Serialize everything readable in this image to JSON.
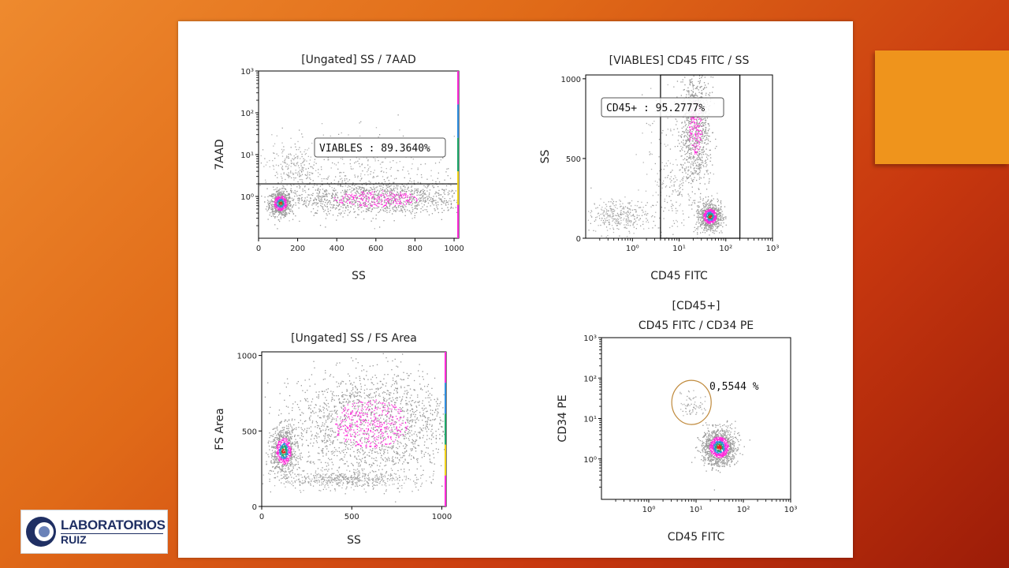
{
  "chart_data": [
    {
      "type": "scatter",
      "title": "[Ungated] SS / 7AAD",
      "xlabel": "SS",
      "ylabel": "7AAD",
      "x_scale": "linear",
      "y_scale": "log",
      "xlim": [
        0,
        1024
      ],
      "ylim": [
        0.1,
        1000
      ],
      "x_ticks": [
        "0",
        "200",
        "400",
        "600",
        "800",
        "1000"
      ],
      "y_ticks": [
        "10⁰",
        "10¹",
        "10²",
        "10³"
      ],
      "gates": [
        {
          "name": "VIABLES",
          "label": "VIABLES : 89.3640%",
          "percent": 89.364,
          "shape": "horizontal-line",
          "threshold": 2
        }
      ],
      "populations": [
        {
          "x": 110,
          "y": 0.7,
          "sx": 28,
          "sy": 0.15,
          "n": 700,
          "density": "high"
        },
        {
          "x": 600,
          "y": 0.9,
          "sx": 230,
          "sy": 0.2,
          "n": 1300,
          "density": "medium"
        },
        {
          "x": 180,
          "y": 5,
          "sx": 60,
          "sy": 0.25,
          "n": 170,
          "density": "low"
        },
        {
          "x": 500,
          "y": 4,
          "sx": 260,
          "sy": 0.5,
          "n": 400,
          "density": "low"
        }
      ]
    },
    {
      "type": "scatter",
      "title": "[VIABLES] CD45 FITC / SS",
      "xlabel": "CD45 FITC",
      "ylabel": "SS",
      "x_scale": "log",
      "y_scale": "linear",
      "xlim": [
        0.1,
        1000
      ],
      "ylim": [
        0,
        1024
      ],
      "x_ticks": [
        "10⁰",
        "10¹",
        "10²",
        "10³"
      ],
      "y_ticks": [
        "0",
        "500",
        "1000"
      ],
      "gates": [
        {
          "name": "CD45+",
          "label": "CD45+ : 95.2777%",
          "percent": 95.2777,
          "shape": "rectangle",
          "xrange": [
            4,
            200
          ]
        }
      ],
      "populations": [
        {
          "x": 45,
          "y": 140,
          "sx": 0.12,
          "sy": 40,
          "n": 800,
          "density": "high"
        },
        {
          "x": 22,
          "y": 700,
          "sx": 0.15,
          "sy": 180,
          "n": 900,
          "density": "medium"
        },
        {
          "x": 0.5,
          "y": 140,
          "sx": 0.3,
          "sy": 50,
          "n": 300,
          "density": "low"
        },
        {
          "x": 8,
          "y": 350,
          "sx": 0.35,
          "sy": 250,
          "n": 300,
          "density": "low"
        }
      ]
    },
    {
      "type": "scatter",
      "title": "[Ungated] SS / FS Area",
      "xlabel": "SS",
      "ylabel": "FS Area",
      "x_scale": "linear",
      "y_scale": "linear",
      "xlim": [
        0,
        1024
      ],
      "ylim": [
        0,
        1024
      ],
      "x_ticks": [
        "0",
        "500",
        "1000"
      ],
      "y_ticks": [
        "0",
        "500",
        "1000"
      ],
      "gates": [],
      "populations": [
        {
          "x": 120,
          "y": 370,
          "sx": 35,
          "sy": 75,
          "n": 800,
          "density": "high"
        },
        {
          "x": 600,
          "y": 550,
          "sx": 220,
          "sy": 170,
          "n": 2000,
          "density": "medium"
        },
        {
          "x": 450,
          "y": 180,
          "sx": 180,
          "sy": 30,
          "n": 500,
          "density": "low"
        }
      ]
    },
    {
      "type": "scatter",
      "title": "[CD45+]",
      "subtitle": "CD45 FITC / CD34 PE",
      "xlabel": "CD45 FITC",
      "ylabel": "CD34 PE",
      "x_scale": "log",
      "y_scale": "log",
      "xlim": [
        0.1,
        1000
      ],
      "ylim": [
        0.1,
        1000
      ],
      "x_ticks": [
        "10⁰",
        "10¹",
        "10²",
        "10³"
      ],
      "y_ticks": [
        "10⁰",
        "10¹",
        "10²",
        "10³"
      ],
      "gates": [
        {
          "name": "CD34+",
          "label": "0,5544 %",
          "percent": 0.5544,
          "shape": "ellipse",
          "center": [
            8,
            25
          ]
        }
      ],
      "populations": [
        {
          "x": 30,
          "y": 2,
          "sx": 0.17,
          "sy": 0.22,
          "n": 1200,
          "density": "high"
        },
        {
          "x": 8,
          "y": 22,
          "sx": 0.12,
          "sy": 0.15,
          "n": 70,
          "density": "low"
        }
      ]
    }
  ],
  "logo": {
    "name": "LABORATORIOS",
    "sub": "RUIZ"
  },
  "colors": {
    "accent": "#ef941c",
    "gate_circle": "#c08a3c",
    "dots_low": "#8f8f8f",
    "dots_high": "#ff2bd9"
  }
}
